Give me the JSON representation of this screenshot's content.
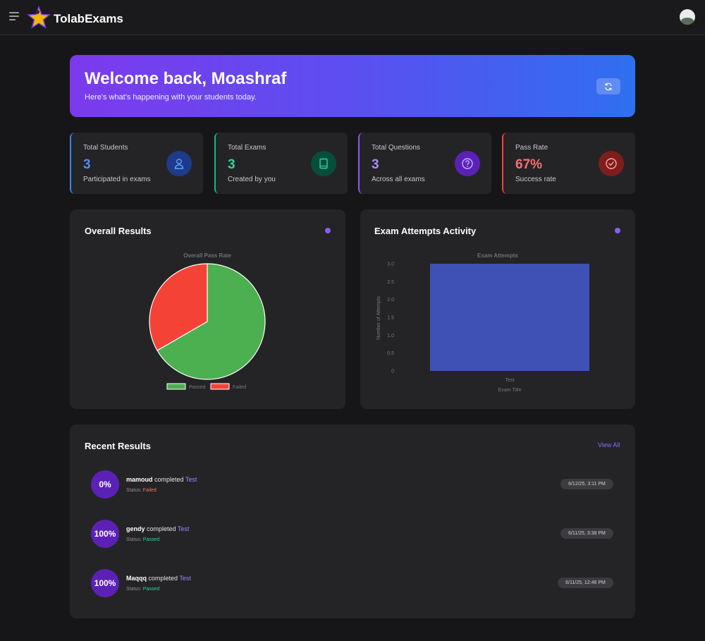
{
  "app": {
    "brand": "TolabExams"
  },
  "banner": {
    "title": "Welcome back, Moashraf",
    "subtitle": "Here's what's happening with your students today."
  },
  "stats": [
    {
      "label": "Total Students",
      "value": "3",
      "sub": "Participated in exams",
      "accent": "#3b82f6",
      "value_color": "#4d8df6",
      "icon": "user-icon"
    },
    {
      "label": "Total Exams",
      "value": "3",
      "sub": "Created by you",
      "accent": "#10b981",
      "value_color": "#34d399",
      "icon": "book-icon"
    },
    {
      "label": "Total Questions",
      "value": "3",
      "sub": "Across all exams",
      "accent": "#8b5cf6",
      "value_color": "#a78bfa",
      "icon": "question-icon"
    },
    {
      "label": "Pass Rate",
      "value": "67%",
      "sub": "Success rate",
      "accent": "#ef4444",
      "value_color": "#f87171",
      "icon": "check-circle-icon"
    }
  ],
  "charts": {
    "overall": {
      "card_title": "Overall Results"
    },
    "attempts": {
      "card_title": "Exam Attempts Activity"
    }
  },
  "chart_data": [
    {
      "type": "pie",
      "title": "Overall Pass Rate",
      "categories": [
        "Passed",
        "Failed"
      ],
      "values": [
        2,
        1
      ],
      "colors": [
        "#4caf50",
        "#f44336"
      ],
      "legend": "bottom"
    },
    {
      "type": "bar",
      "title": "Exam Attempts",
      "categories": [
        "Test"
      ],
      "values": [
        3
      ],
      "xlabel": "Exam Title",
      "ylabel": "Number of Attempts",
      "ylim": [
        0,
        3
      ],
      "yticks": [
        "0",
        "0.5",
        "1.0",
        "1.5",
        "2.0",
        "2.5",
        "3.0"
      ],
      "color": "#3f51b5",
      "grid": false
    }
  ],
  "recent": {
    "title": "Recent Results",
    "view_all": "View All",
    "completed_word": "completed",
    "status_prefix": "Status:",
    "items": [
      {
        "score": "0%",
        "name": "mamoud",
        "exam": "Test",
        "status": "Failed",
        "status_color": "#f87171",
        "time": "6/12/25, 3:11 PM"
      },
      {
        "score": "100%",
        "name": "gendy",
        "exam": "Test",
        "status": "Passed",
        "status_color": "#34d399",
        "time": "6/11/25, 3:38 PM"
      },
      {
        "score": "100%",
        "name": "Maqqq",
        "exam": "Test",
        "status": "Passed",
        "status_color": "#34d399",
        "time": "6/11/25, 12:46 PM"
      }
    ]
  }
}
